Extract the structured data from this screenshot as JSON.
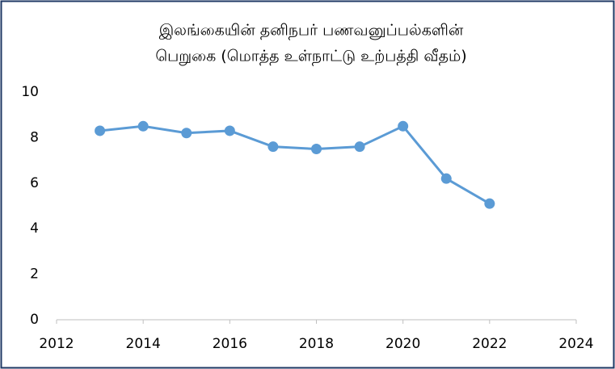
{
  "chart_data": {
    "type": "line",
    "title": [
      "இலங்கையின் தனிநபர் பணவனுப்பல்களின்",
      "பெறுகை (மொத்த உள்நாட்டு உற்பத்தி வீதம்)"
    ],
    "x": [
      2013,
      2014,
      2015,
      2016,
      2017,
      2018,
      2019,
      2020,
      2021,
      2022
    ],
    "values": [
      8.3,
      8.5,
      8.2,
      8.3,
      7.6,
      7.5,
      7.6,
      8.5,
      6.2,
      5.1
    ],
    "color": "#5b9bd5",
    "xlim": [
      2012,
      2024
    ],
    "xticks": [
      2012,
      2014,
      2016,
      2018,
      2020,
      2022,
      2024
    ],
    "ylim": [
      0,
      10
    ],
    "yticks": [
      0,
      2,
      4,
      6,
      8,
      10
    ],
    "grid": false
  }
}
